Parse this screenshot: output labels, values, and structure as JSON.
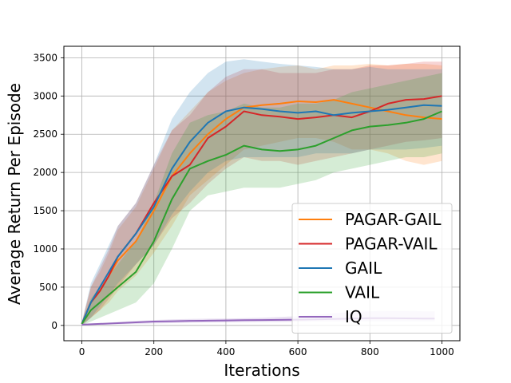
{
  "chart_data": {
    "type": "line",
    "title": "",
    "xlabel": "Iterations",
    "ylabel": "Average Return Per Episode",
    "xlim": [
      -50,
      1050
    ],
    "ylim": [
      -200,
      3650
    ],
    "xticks": [
      0,
      200,
      400,
      600,
      800,
      1000
    ],
    "yticks": [
      0,
      500,
      1000,
      1500,
      2000,
      2500,
      3000,
      3500
    ],
    "grid": true,
    "legend_position": "lower-right",
    "series": [
      {
        "name": "PAGAR-GAIL",
        "color": "#ff7f0e",
        "x": [
          0,
          25,
          50,
          75,
          100,
          150,
          200,
          250,
          300,
          350,
          400,
          450,
          500,
          550,
          600,
          650,
          700,
          750,
          800,
          850,
          900,
          950,
          1000
        ],
        "y": [
          20,
          300,
          450,
          650,
          850,
          1100,
          1500,
          1950,
          2250,
          2500,
          2700,
          2850,
          2880,
          2900,
          2930,
          2920,
          2950,
          2900,
          2850,
          2800,
          2750,
          2720,
          2700
        ],
        "lower": [
          0,
          100,
          200,
          300,
          450,
          650,
          950,
          1300,
          1700,
          1900,
          2100,
          2300,
          2350,
          2400,
          2450,
          2450,
          2400,
          2300,
          2300,
          2250,
          2150,
          2100,
          2150
        ],
        "upper": [
          40,
          500,
          700,
          950,
          1250,
          1550,
          2050,
          2550,
          2800,
          3050,
          3200,
          3300,
          3350,
          3380,
          3400,
          3350,
          3400,
          3400,
          3420,
          3400,
          3420,
          3420,
          3400
        ]
      },
      {
        "name": "PAGAR-VAIL",
        "color": "#d62728",
        "x": [
          0,
          25,
          50,
          75,
          100,
          150,
          200,
          250,
          300,
          350,
          400,
          450,
          500,
          550,
          600,
          650,
          700,
          750,
          800,
          850,
          900,
          950,
          1000
        ],
        "y": [
          20,
          300,
          450,
          650,
          900,
          1200,
          1600,
          1950,
          2100,
          2450,
          2600,
          2800,
          2750,
          2730,
          2700,
          2720,
          2750,
          2720,
          2800,
          2900,
          2950,
          2960,
          3000
        ],
        "lower": [
          0,
          100,
          200,
          350,
          500,
          800,
          1050,
          1400,
          1600,
          1850,
          2050,
          2200,
          2150,
          2150,
          2100,
          2150,
          2200,
          2250,
          2300,
          2350,
          2400,
          2420,
          2450
        ],
        "upper": [
          40,
          500,
          750,
          1000,
          1300,
          1600,
          2100,
          2550,
          2750,
          3050,
          3250,
          3350,
          3350,
          3300,
          3300,
          3300,
          3350,
          3350,
          3400,
          3400,
          3420,
          3450,
          3450
        ]
      },
      {
        "name": "GAIL",
        "color": "#1f77b4",
        "x": [
          0,
          25,
          50,
          75,
          100,
          150,
          200,
          250,
          300,
          350,
          400,
          450,
          500,
          550,
          600,
          650,
          700,
          750,
          800,
          850,
          900,
          950,
          1000
        ],
        "y": [
          20,
          300,
          500,
          700,
          900,
          1200,
          1550,
          2050,
          2400,
          2650,
          2800,
          2850,
          2830,
          2800,
          2780,
          2800,
          2750,
          2780,
          2800,
          2820,
          2850,
          2880,
          2870
        ],
        "lower": [
          0,
          100,
          250,
          400,
          550,
          800,
          1050,
          1450,
          1750,
          2000,
          2150,
          2200,
          2200,
          2200,
          2200,
          2250,
          2250,
          2250,
          2300,
          2300,
          2300,
          2320,
          2350
        ],
        "upper": [
          40,
          550,
          800,
          1050,
          1300,
          1600,
          2100,
          2700,
          3050,
          3300,
          3450,
          3480,
          3450,
          3420,
          3400,
          3380,
          3350,
          3350,
          3380,
          3350,
          3350,
          3350,
          3350
        ]
      },
      {
        "name": "VAIL",
        "color": "#2ca02c",
        "x": [
          0,
          25,
          50,
          75,
          100,
          150,
          200,
          250,
          300,
          350,
          400,
          450,
          500,
          550,
          600,
          650,
          700,
          750,
          800,
          850,
          900,
          950,
          1000
        ],
        "y": [
          20,
          200,
          300,
          400,
          500,
          700,
          1100,
          1650,
          2050,
          2150,
          2230,
          2350,
          2300,
          2280,
          2300,
          2350,
          2450,
          2550,
          2600,
          2620,
          2650,
          2700,
          2800
        ],
        "lower": [
          0,
          50,
          100,
          150,
          200,
          300,
          550,
          1000,
          1500,
          1700,
          1750,
          1800,
          1800,
          1800,
          1850,
          1900,
          2000,
          2050,
          2100,
          2150,
          2200,
          2200,
          2250
        ],
        "upper": [
          40,
          350,
          500,
          650,
          800,
          1100,
          1600,
          2250,
          2650,
          2750,
          2800,
          2900,
          2850,
          2850,
          2900,
          2900,
          2950,
          3050,
          3100,
          3150,
          3200,
          3250,
          3300
        ]
      },
      {
        "name": "IQ",
        "color": "#9467bd",
        "x": [
          0,
          50,
          100,
          150,
          200,
          250,
          300,
          350,
          400,
          450,
          500,
          550,
          600,
          650,
          700,
          750,
          800,
          850,
          900,
          950,
          980
        ],
        "y": [
          10,
          20,
          30,
          40,
          50,
          55,
          60,
          62,
          65,
          68,
          70,
          72,
          75,
          80,
          85,
          90,
          95,
          95,
          92,
          90,
          90
        ],
        "lower": [
          0,
          10,
          15,
          20,
          25,
          30,
          35,
          38,
          40,
          42,
          45,
          45,
          48,
          50,
          50,
          52,
          55,
          55,
          55,
          55,
          55
        ],
        "upper": [
          20,
          30,
          45,
          60,
          70,
          80,
          85,
          88,
          90,
          95,
          100,
          110,
          120,
          140,
          160,
          175,
          185,
          190,
          190,
          185,
          185
        ]
      }
    ]
  }
}
